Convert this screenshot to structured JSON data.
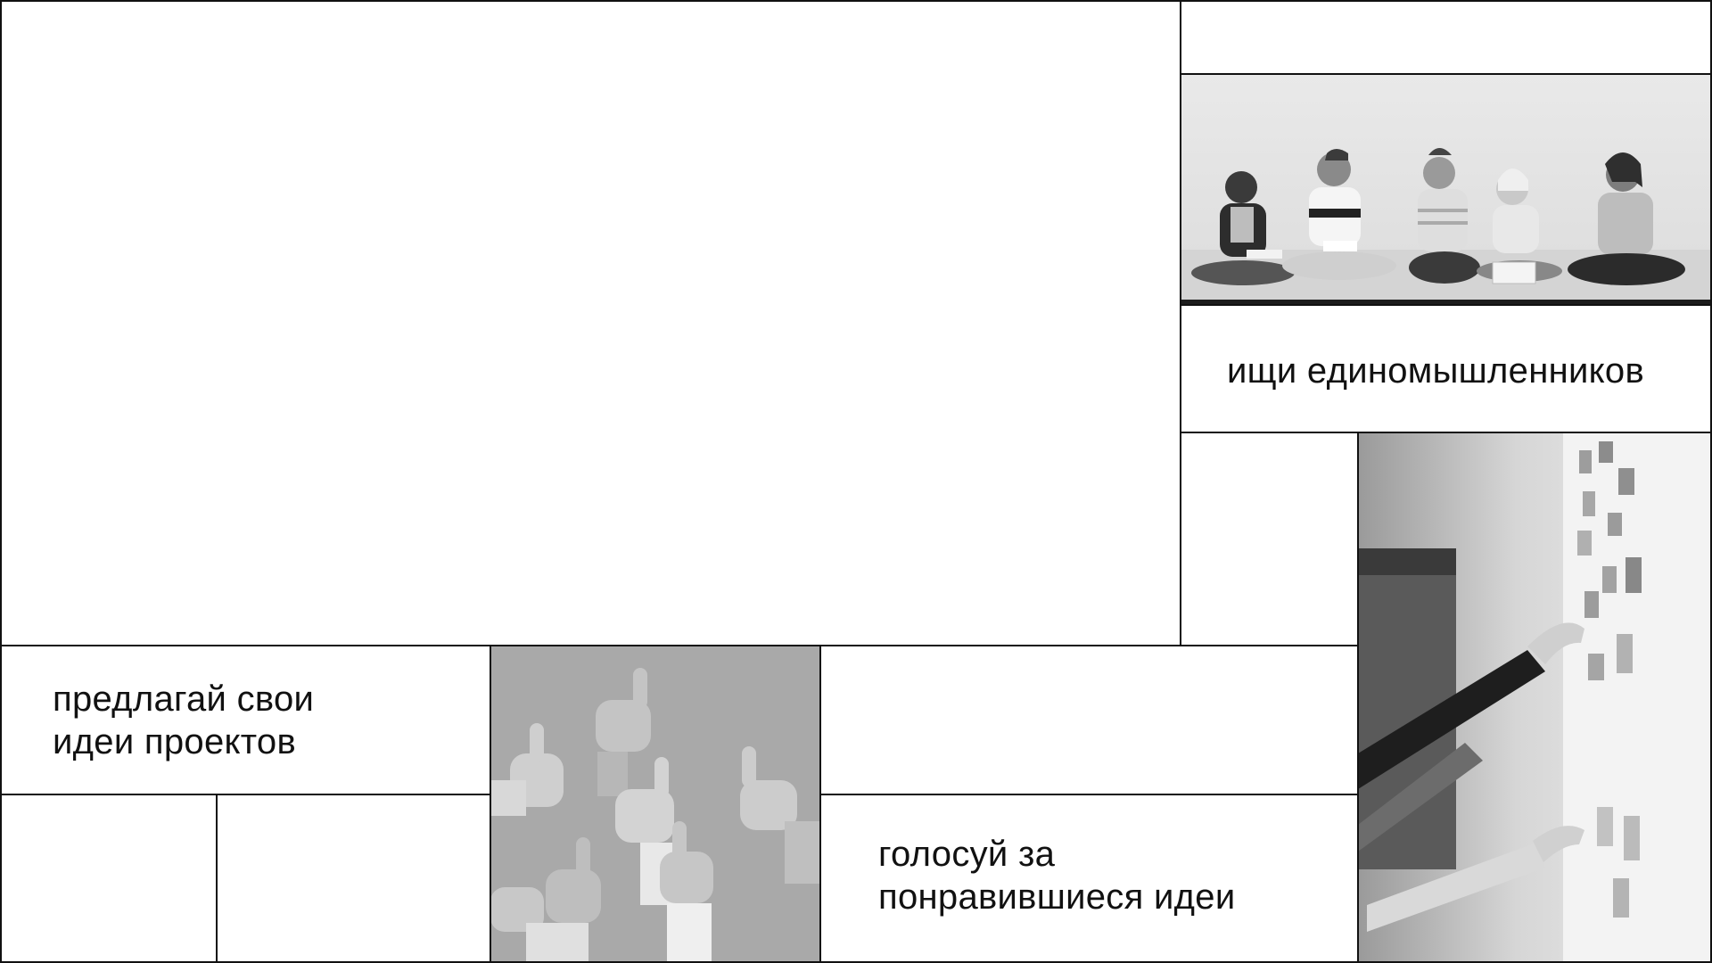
{
  "cards": {
    "find_people": {
      "text": "ищи единомышленников"
    },
    "propose": {
      "line1": "предлагай свои",
      "line2": "идеи проектов"
    },
    "vote": {
      "line1": "голосуй за",
      "line2": "понравившиеся идеи"
    }
  },
  "photos": {
    "group": "group-of-students-photo",
    "thumbs": "thumbs-up-hands-photo",
    "sticky": "sticky-notes-wall-photo"
  },
  "colors": {
    "background": "#ffffff",
    "line": "#111111",
    "text": "#111111"
  }
}
